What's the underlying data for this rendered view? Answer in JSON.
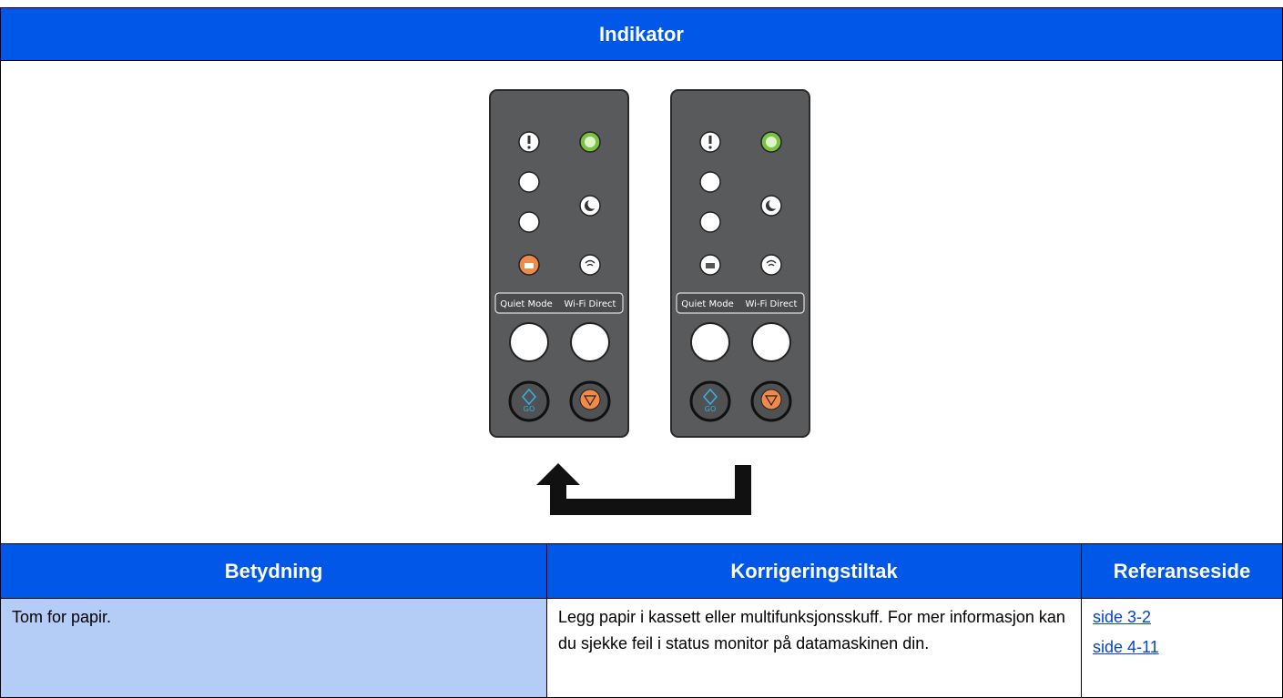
{
  "header": {
    "title": "Indikator"
  },
  "panels": {
    "labels": [
      "Quiet Mode",
      "Wi-Fi Direct"
    ],
    "go": "GO"
  },
  "table": {
    "columns": [
      "Betydning",
      "Korrigeringstiltak",
      "Referanseside"
    ],
    "rows": [
      {
        "meaning": "Tom for papir.",
        "action": "Legg papir i kassett eller multifunksjonsskuff. For mer informasjon kan du sjekke feil i status monitor på datamaskinen din.",
        "references": [
          "side 3-2",
          "side 4-11"
        ]
      }
    ]
  }
}
